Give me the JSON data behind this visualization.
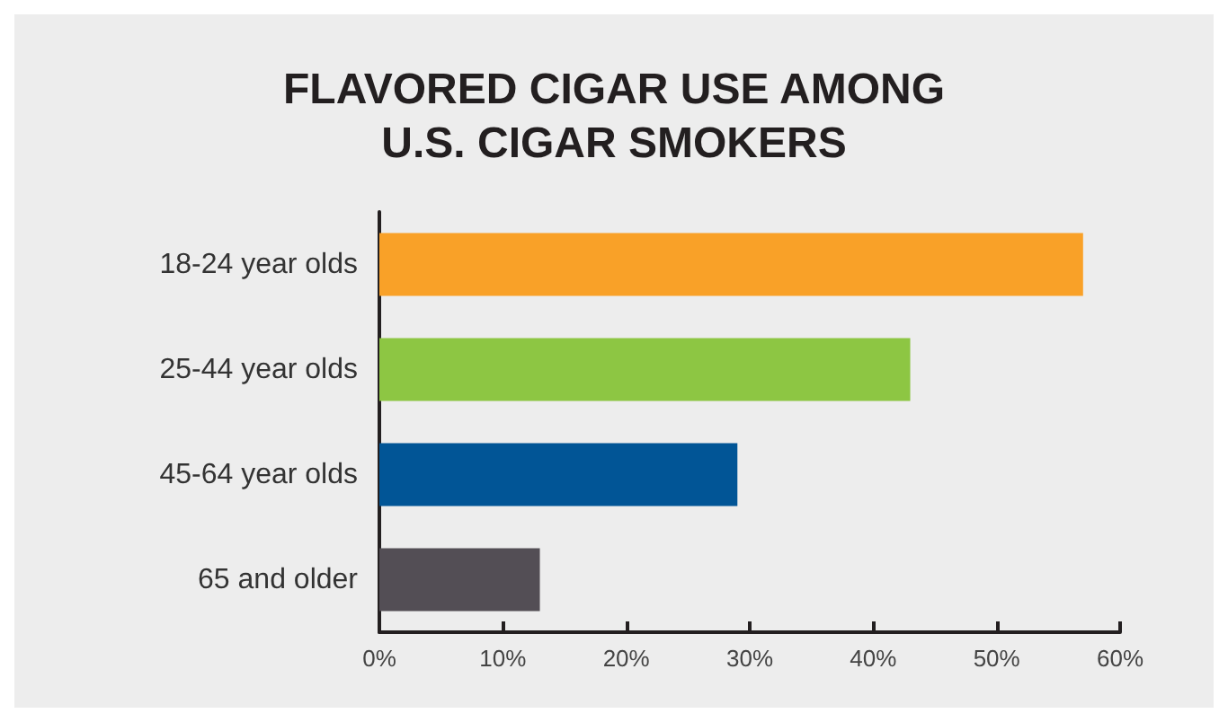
{
  "chart_data": {
    "type": "bar",
    "orientation": "horizontal",
    "title": "FLAVORED CIGAR USE AMONG\nU.S. CIGAR SMOKERS",
    "categories": [
      "18-24 year olds",
      "25-44 year olds",
      "45-64 year olds",
      "65 and older"
    ],
    "values": [
      57,
      43,
      29,
      13
    ],
    "colors": [
      "#f9a128",
      "#8dc643",
      "#015596",
      "#534e55"
    ],
    "xlim": [
      0,
      60
    ],
    "xticks": [
      {
        "value": 0,
        "label": "0%"
      },
      {
        "value": 10,
        "label": "10%"
      },
      {
        "value": 20,
        "label": "20%"
      },
      {
        "value": 30,
        "label": "30%"
      },
      {
        "value": 40,
        "label": "40%"
      },
      {
        "value": 50,
        "label": "50%"
      },
      {
        "value": 60,
        "label": "60%"
      }
    ],
    "grid": false
  }
}
